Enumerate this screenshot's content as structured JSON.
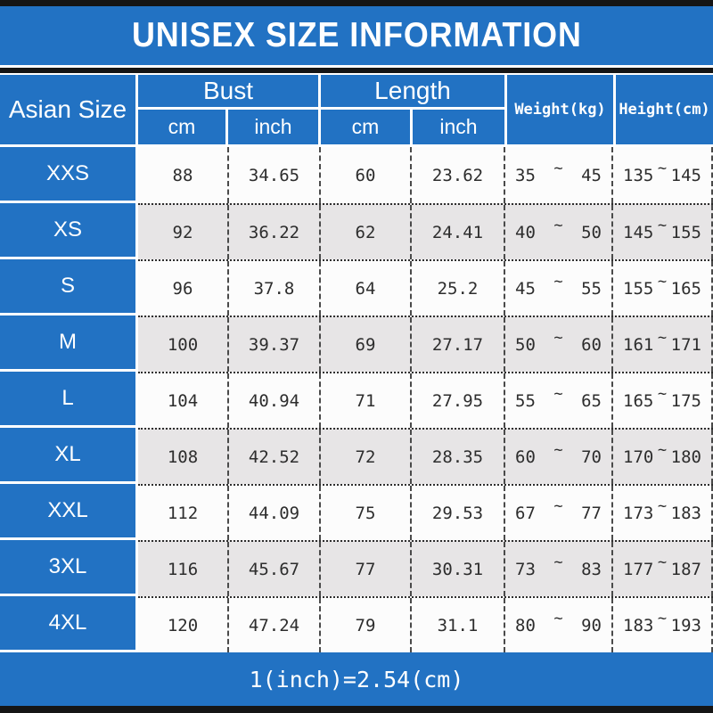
{
  "title": "UNISEX SIZE INFORMATION",
  "footer_note": "1(inch)=2.54(cm)",
  "glyphs": {
    "tilde": "~"
  },
  "colors": {
    "blue": "#2272c3",
    "row_white": "#fcfcfc",
    "row_gray": "#e7e5e6",
    "bar_black": "#151515",
    "text_dark": "#2d2d2d",
    "text_white": "#ffffff"
  },
  "header": {
    "size_column": "Asian Size",
    "bust": {
      "label": "Bust",
      "units": [
        "cm",
        "inch"
      ]
    },
    "length": {
      "label": "Length",
      "units": [
        "cm",
        "inch"
      ]
    },
    "weight": "Weight(kg)",
    "height": "Height(cm)"
  },
  "rows": [
    {
      "size": "XXS",
      "bust_cm": "88",
      "bust_inch": "34.65",
      "length_cm": "60",
      "length_inch": "23.62",
      "weight_min": "35",
      "weight_max": "45",
      "height_min": "135",
      "height_max": "145"
    },
    {
      "size": "XS",
      "bust_cm": "92",
      "bust_inch": "36.22",
      "length_cm": "62",
      "length_inch": "24.41",
      "weight_min": "40",
      "weight_max": "50",
      "height_min": "145",
      "height_max": "155"
    },
    {
      "size": "S",
      "bust_cm": "96",
      "bust_inch": "37.8",
      "length_cm": "64",
      "length_inch": "25.2",
      "weight_min": "45",
      "weight_max": "55",
      "height_min": "155",
      "height_max": "165"
    },
    {
      "size": "M",
      "bust_cm": "100",
      "bust_inch": "39.37",
      "length_cm": "69",
      "length_inch": "27.17",
      "weight_min": "50",
      "weight_max": "60",
      "height_min": "161",
      "height_max": "171"
    },
    {
      "size": "L",
      "bust_cm": "104",
      "bust_inch": "40.94",
      "length_cm": "71",
      "length_inch": "27.95",
      "weight_min": "55",
      "weight_max": "65",
      "height_min": "165",
      "height_max": "175"
    },
    {
      "size": "XL",
      "bust_cm": "108",
      "bust_inch": "42.52",
      "length_cm": "72",
      "length_inch": "28.35",
      "weight_min": "60",
      "weight_max": "70",
      "height_min": "170",
      "height_max": "180"
    },
    {
      "size": "XXL",
      "bust_cm": "112",
      "bust_inch": "44.09",
      "length_cm": "75",
      "length_inch": "29.53",
      "weight_min": "67",
      "weight_max": "77",
      "height_min": "173",
      "height_max": "183"
    },
    {
      "size": "3XL",
      "bust_cm": "116",
      "bust_inch": "45.67",
      "length_cm": "77",
      "length_inch": "30.31",
      "weight_min": "73",
      "weight_max": "83",
      "height_min": "177",
      "height_max": "187"
    },
    {
      "size": "4XL",
      "bust_cm": "120",
      "bust_inch": "47.24",
      "length_cm": "79",
      "length_inch": "31.1",
      "weight_min": "80",
      "weight_max": "90",
      "height_min": "183",
      "height_max": "193"
    }
  ],
  "chart_data": {
    "type": "table",
    "title": "UNISEX SIZE INFORMATION",
    "columns": [
      "Asian Size",
      "Bust cm",
      "Bust inch",
      "Length cm",
      "Length inch",
      "Weight(kg)",
      "Height(cm)"
    ],
    "rows": [
      [
        "XXS",
        88,
        34.65,
        60,
        23.62,
        "35~45",
        "135~145"
      ],
      [
        "XS",
        92,
        36.22,
        62,
        24.41,
        "40~50",
        "145~155"
      ],
      [
        "S",
        96,
        37.8,
        64,
        25.2,
        "45~55",
        "155~165"
      ],
      [
        "M",
        100,
        39.37,
        69,
        27.17,
        "50~60",
        "161~171"
      ],
      [
        "L",
        104,
        40.94,
        71,
        27.95,
        "55~65",
        "165~175"
      ],
      [
        "XL",
        108,
        42.52,
        72,
        28.35,
        "60~70",
        "170~180"
      ],
      [
        "XXL",
        112,
        44.09,
        75,
        29.53,
        "67~77",
        "173~183"
      ],
      [
        "3XL",
        116,
        45.67,
        77,
        30.31,
        "73~83",
        "177~187"
      ],
      [
        "4XL",
        120,
        47.24,
        79,
        31.1,
        "80~90",
        "183~193"
      ]
    ],
    "note": "1(inch)=2.54(cm)"
  }
}
